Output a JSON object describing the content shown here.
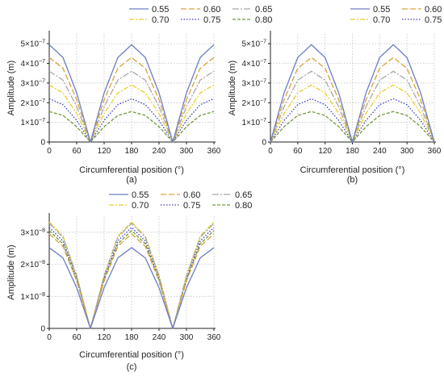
{
  "series_styles": [
    {
      "color": "#6b7fc4",
      "dash": "",
      "width": 1.3
    },
    {
      "color": "#d9a23a",
      "dash": "7,3",
      "width": 1.3
    },
    {
      "color": "#a8a8a8",
      "dash": "8,2,2,2",
      "width": 1.3
    },
    {
      "color": "#e6cf28",
      "dash": "6,2,2,2",
      "width": 1.3
    },
    {
      "color": "#3d3dc8",
      "dash": "1.5,2",
      "width": 1.3
    },
    {
      "color": "#6e9a3c",
      "dash": "4,2",
      "width": 1.3
    }
  ],
  "chart_data": [
    {
      "type": "line",
      "panel": "(a)",
      "title": "",
      "xlabel": "Circumferential position (°)",
      "ylabel": "Amplitude (m)",
      "xlim": [
        0,
        360
      ],
      "ylim": [
        0,
        5.5e-07
      ],
      "xticks": [
        0,
        60,
        120,
        180,
        240,
        300,
        360
      ],
      "yticks": [
        {
          "value": 0,
          "mant": "0",
          "exp": ""
        },
        {
          "value": 1e-07,
          "mant": "1×10",
          "exp": "−7"
        },
        {
          "value": 2e-07,
          "mant": "2×10",
          "exp": "−7"
        },
        {
          "value": 3e-07,
          "mant": "3×10",
          "exp": "−7"
        },
        {
          "value": 4e-07,
          "mant": "4×10",
          "exp": "−7"
        },
        {
          "value": 5e-07,
          "mant": "5×10",
          "exp": "−7"
        }
      ],
      "grid": true,
      "legend": "top-right",
      "x": [
        0,
        30,
        60,
        90,
        120,
        150,
        180,
        210,
        240,
        270,
        300,
        330,
        360
      ],
      "series": [
        {
          "name": "0.55",
          "values": [
            4.95e-07,
            4.3e-07,
            2.5e-07,
            0,
            2.5e-07,
            4.3e-07,
            4.95e-07,
            4.3e-07,
            2.5e-07,
            0,
            2.5e-07,
            4.3e-07,
            4.95e-07
          ]
        },
        {
          "name": "0.60",
          "values": [
            4.3e-07,
            3.75e-07,
            2.15e-07,
            0,
            2.15e-07,
            3.75e-07,
            4.3e-07,
            3.75e-07,
            2.15e-07,
            0,
            2.15e-07,
            3.75e-07,
            4.3e-07
          ]
        },
        {
          "name": "0.65",
          "values": [
            3.6e-07,
            3.15e-07,
            1.8e-07,
            0,
            1.8e-07,
            3.15e-07,
            3.6e-07,
            3.15e-07,
            1.8e-07,
            0,
            1.8e-07,
            3.15e-07,
            3.6e-07
          ]
        },
        {
          "name": "0.70",
          "values": [
            2.9e-07,
            2.5e-07,
            1.45e-07,
            0,
            1.45e-07,
            2.5e-07,
            2.9e-07,
            2.5e-07,
            1.45e-07,
            0,
            1.45e-07,
            2.5e-07,
            2.9e-07
          ]
        },
        {
          "name": "0.75",
          "values": [
            2.2e-07,
            1.9e-07,
            1.1e-07,
            0,
            1.1e-07,
            1.9e-07,
            2.2e-07,
            1.9e-07,
            1.1e-07,
            0,
            1.1e-07,
            1.9e-07,
            2.2e-07
          ]
        },
        {
          "name": "0.80",
          "values": [
            1.55e-07,
            1.35e-07,
            7.8e-08,
            0,
            7.8e-08,
            1.35e-07,
            1.55e-07,
            1.35e-07,
            7.8e-08,
            0,
            7.8e-08,
            1.35e-07,
            1.55e-07
          ]
        }
      ]
    },
    {
      "type": "line",
      "panel": "(b)",
      "title": "",
      "xlabel": "Circumferential position (°)",
      "ylabel": "Amplitude (m)",
      "xlim": [
        0,
        360
      ],
      "ylim": [
        0,
        5.5e-07
      ],
      "xticks": [
        0,
        60,
        120,
        180,
        240,
        300,
        360
      ],
      "yticks": [
        {
          "value": 0,
          "mant": "0",
          "exp": ""
        },
        {
          "value": 1e-07,
          "mant": "1×10",
          "exp": "−7"
        },
        {
          "value": 2e-07,
          "mant": "2×10",
          "exp": "−7"
        },
        {
          "value": 3e-07,
          "mant": "3×10",
          "exp": "−7"
        },
        {
          "value": 4e-07,
          "mant": "4×10",
          "exp": "−7"
        },
        {
          "value": 5e-07,
          "mant": "5×10",
          "exp": "−7"
        }
      ],
      "grid": true,
      "legend": "top-right",
      "x": [
        0,
        30,
        60,
        90,
        120,
        150,
        180,
        210,
        240,
        270,
        300,
        330,
        360
      ],
      "series": [
        {
          "name": "0.55",
          "values": [
            0,
            2.5e-07,
            4.3e-07,
            4.95e-07,
            4.3e-07,
            2.5e-07,
            0,
            2.5e-07,
            4.3e-07,
            4.95e-07,
            4.3e-07,
            2.5e-07,
            0
          ]
        },
        {
          "name": "0.60",
          "values": [
            0,
            2.15e-07,
            3.75e-07,
            4.3e-07,
            3.75e-07,
            2.15e-07,
            0,
            2.15e-07,
            3.75e-07,
            4.3e-07,
            3.75e-07,
            2.15e-07,
            0
          ]
        },
        {
          "name": "0.65",
          "values": [
            0,
            1.8e-07,
            3.15e-07,
            3.6e-07,
            3.15e-07,
            1.8e-07,
            0,
            1.8e-07,
            3.15e-07,
            3.6e-07,
            3.15e-07,
            1.8e-07,
            0
          ]
        },
        {
          "name": "0.70",
          "values": [
            0,
            1.45e-07,
            2.5e-07,
            2.9e-07,
            2.5e-07,
            1.45e-07,
            0,
            1.45e-07,
            2.5e-07,
            2.9e-07,
            2.5e-07,
            1.45e-07,
            0
          ]
        },
        {
          "name": "0.75",
          "values": [
            0,
            1.1e-07,
            1.9e-07,
            2.2e-07,
            1.9e-07,
            1.1e-07,
            0,
            1.1e-07,
            1.9e-07,
            2.2e-07,
            1.9e-07,
            1.1e-07,
            0
          ]
        },
        {
          "name": "0.80",
          "values": [
            0,
            7.8e-08,
            1.35e-07,
            1.55e-07,
            1.35e-07,
            7.8e-08,
            0,
            7.8e-08,
            1.35e-07,
            1.55e-07,
            1.35e-07,
            7.8e-08,
            0
          ]
        }
      ]
    },
    {
      "type": "line",
      "panel": "(c)",
      "title": "",
      "xlabel": "Circumferential position (°)",
      "ylabel": "Amplitude (m)",
      "xlim": [
        0,
        360
      ],
      "ylim": [
        0,
        3.5e-08
      ],
      "xticks": [
        0,
        60,
        120,
        180,
        240,
        300,
        360
      ],
      "yticks": [
        {
          "value": 0,
          "mant": "0",
          "exp": ""
        },
        {
          "value": 1e-08,
          "mant": "1×10",
          "exp": "−8"
        },
        {
          "value": 2e-08,
          "mant": "2×10",
          "exp": "−8"
        },
        {
          "value": 3e-08,
          "mant": "3×10",
          "exp": "−8"
        }
      ],
      "grid": true,
      "legend": "top-right",
      "x": [
        0,
        30,
        60,
        90,
        120,
        150,
        180,
        210,
        240,
        270,
        300,
        330,
        360
      ],
      "series": [
        {
          "name": "0.55",
          "values": [
            2.52e-08,
            2.2e-08,
            1.27e-08,
            0,
            1.27e-08,
            2.2e-08,
            2.52e-08,
            2.2e-08,
            1.27e-08,
            0,
            1.27e-08,
            2.2e-08,
            2.52e-08
          ]
        },
        {
          "name": "0.60",
          "values": [
            2.95e-08,
            2.56e-08,
            1.48e-08,
            0,
            1.48e-08,
            2.56e-08,
            2.95e-08,
            2.56e-08,
            1.48e-08,
            0,
            1.48e-08,
            2.56e-08,
            2.95e-08
          ]
        },
        {
          "name": "0.65",
          "values": [
            3.28e-08,
            2.84e-08,
            1.64e-08,
            0,
            1.64e-08,
            2.84e-08,
            3.28e-08,
            2.84e-08,
            1.64e-08,
            0,
            1.64e-08,
            2.84e-08,
            3.28e-08
          ]
        },
        {
          "name": "0.70",
          "values": [
            3.32e-08,
            2.88e-08,
            1.66e-08,
            0,
            1.66e-08,
            2.88e-08,
            3.32e-08,
            2.88e-08,
            1.66e-08,
            0,
            1.66e-08,
            2.88e-08,
            3.32e-08
          ]
        },
        {
          "name": "0.75",
          "values": [
            3.15e-08,
            2.73e-08,
            1.58e-08,
            0,
            1.58e-08,
            2.73e-08,
            3.15e-08,
            2.73e-08,
            1.58e-08,
            0,
            1.58e-08,
            2.73e-08,
            3.15e-08
          ]
        },
        {
          "name": "0.80",
          "values": [
            3.05e-08,
            2.64e-08,
            1.52e-08,
            0,
            1.52e-08,
            2.64e-08,
            3.05e-08,
            2.64e-08,
            1.52e-08,
            0,
            1.52e-08,
            2.64e-08,
            3.05e-08
          ]
        }
      ]
    }
  ]
}
